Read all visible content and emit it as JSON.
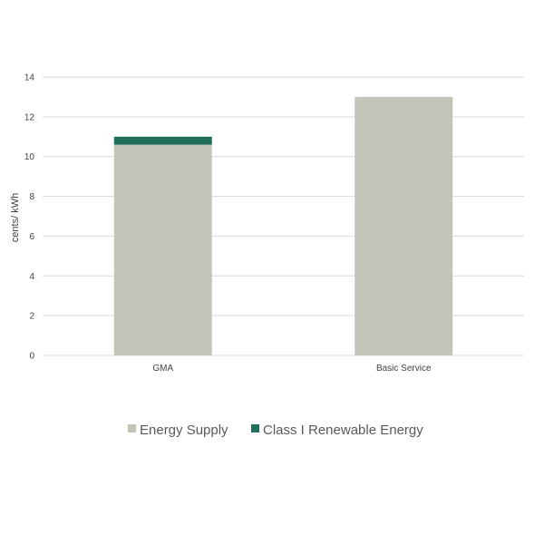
{
  "chart_data": {
    "type": "bar",
    "stacked": true,
    "categories": [
      "GMA",
      "Basic Service"
    ],
    "series": [
      {
        "name": "Energy Supply",
        "values": [
          10.6,
          13.0
        ],
        "color": "#c4c4b8"
      },
      {
        "name": "Class I Renewable Energy",
        "values": [
          0.4,
          0
        ],
        "color": "#1f6f5c"
      }
    ],
    "ylabel": "cents/ kWh",
    "ylim": [
      0,
      14
    ],
    "yticks": [
      0,
      2,
      4,
      6,
      8,
      10,
      12,
      14
    ],
    "grid": true,
    "legend": "bottom"
  }
}
